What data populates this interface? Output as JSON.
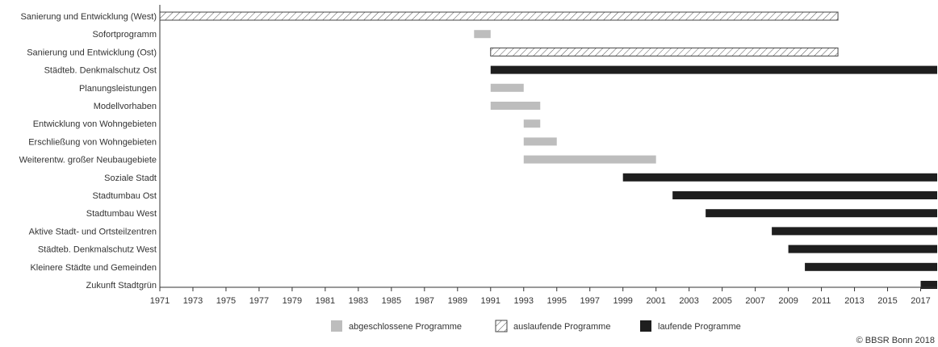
{
  "chart_data": {
    "type": "bar",
    "orientation": "horizontal-timeline",
    "x_range": [
      1971,
      2018
    ],
    "x_ticks": [
      1971,
      1973,
      1975,
      1977,
      1979,
      1981,
      1983,
      1985,
      1987,
      1989,
      1991,
      1993,
      1995,
      1997,
      1999,
      2001,
      2003,
      2005,
      2007,
      2009,
      2011,
      2013,
      2015,
      2017
    ],
    "grid": false,
    "legend_position": "bottom",
    "legend": [
      {
        "key": "completed",
        "label": "abgeschlossene Programme",
        "color": "#bdbdbd"
      },
      {
        "key": "expiring",
        "label": "auslaufende Programme",
        "color": "#ffffff"
      },
      {
        "key": "running",
        "label": "laufende Programme",
        "color": "#1e1e1e"
      }
    ],
    "programs": [
      {
        "name": "Sanierung und Entwicklung (West)",
        "start": 1971,
        "end": 2012,
        "status": "expiring"
      },
      {
        "name": "Sofortprogramm",
        "start": 1990,
        "end": 1991,
        "status": "completed"
      },
      {
        "name": "Sanierung und Entwicklung (Ost)",
        "start": 1991,
        "end": 2012,
        "status": "expiring"
      },
      {
        "name": "Städteb. Denkmalschutz Ost",
        "start": 1991,
        "end": 2018,
        "status": "running"
      },
      {
        "name": "Planungsleistungen",
        "start": 1991,
        "end": 1993,
        "status": "completed"
      },
      {
        "name": "Modellvorhaben",
        "start": 1991,
        "end": 1994,
        "status": "completed"
      },
      {
        "name": "Entwicklung von Wohngebieten",
        "start": 1993,
        "end": 1994,
        "status": "completed"
      },
      {
        "name": "Erschließung von Wohngebieten",
        "start": 1993,
        "end": 1995,
        "status": "completed"
      },
      {
        "name": "Weiterentw. großer Neubaugebiete",
        "start": 1993,
        "end": 2001,
        "status": "completed"
      },
      {
        "name": "Soziale Stadt",
        "start": 1999,
        "end": 2018,
        "status": "running"
      },
      {
        "name": "Stadtumbau Ost",
        "start": 2002,
        "end": 2018,
        "status": "running"
      },
      {
        "name": "Stadtumbau West",
        "start": 2004,
        "end": 2018,
        "status": "running"
      },
      {
        "name": "Aktive Stadt- und Ortsteilzentren",
        "start": 2008,
        "end": 2018,
        "status": "running"
      },
      {
        "name": "Städteb. Denkmalschutz West",
        "start": 2009,
        "end": 2018,
        "status": "running"
      },
      {
        "name": "Kleinere Städte und Gemeinden",
        "start": 2010,
        "end": 2018,
        "status": "running"
      },
      {
        "name": "Zukunft Stadtgrün",
        "start": 2017,
        "end": 2018,
        "status": "running"
      }
    ]
  },
  "credit": "© BBSR Bonn 2018"
}
